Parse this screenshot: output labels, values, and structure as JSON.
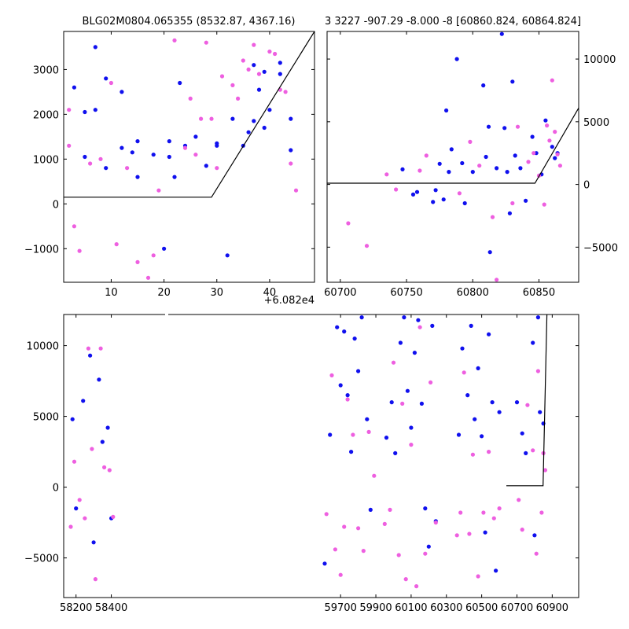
{
  "chart_data": [
    {
      "type": "scatter",
      "title": "BLG02M0804.065355 (8532.87, 4367.16)",
      "xlabel": "",
      "ylabel": "",
      "xlim": [
        1,
        48.5
      ],
      "ylim": [
        -1750,
        3850
      ],
      "x_offset_label": "+6.082e4",
      "xticks": [
        10,
        20,
        30,
        40
      ],
      "yticks": [
        -1000,
        0,
        1000,
        2000,
        3000
      ],
      "y_axis_side": "left",
      "series": [
        {
          "name": "blue",
          "color": "#1010ee",
          "points": [
            [
              3,
              2600
            ],
            [
              5,
              1050
            ],
            [
              5,
              2050
            ],
            [
              7,
              3500
            ],
            [
              7,
              2100
            ],
            [
              9,
              2800
            ],
            [
              9,
              800
            ],
            [
              12,
              1250
            ],
            [
              12,
              2500
            ],
            [
              14,
              1150
            ],
            [
              15,
              1400
            ],
            [
              15,
              600
            ],
            [
              18,
              1100
            ],
            [
              20,
              -1000
            ],
            [
              21,
              1050
            ],
            [
              21,
              1400
            ],
            [
              22,
              600
            ],
            [
              23,
              2700
            ],
            [
              24,
              1300
            ],
            [
              26,
              1500
            ],
            [
              28,
              850
            ],
            [
              30,
              1300
            ],
            [
              30,
              1350
            ],
            [
              32,
              -1150
            ],
            [
              33,
              1900
            ],
            [
              35,
              1300
            ],
            [
              36,
              1600
            ],
            [
              37,
              1850
            ],
            [
              37,
              3100
            ],
            [
              38,
              2550
            ],
            [
              39,
              2950
            ],
            [
              39,
              1700
            ],
            [
              40,
              2100
            ],
            [
              42,
              2900
            ],
            [
              42,
              3150
            ],
            [
              44,
              1900
            ],
            [
              44,
              1200
            ]
          ]
        },
        {
          "name": "magenta",
          "color": "#ee5fe0",
          "points": [
            [
              2,
              2100
            ],
            [
              2,
              1300
            ],
            [
              3,
              -500
            ],
            [
              4,
              -1050
            ],
            [
              6,
              900
            ],
            [
              8,
              1000
            ],
            [
              10,
              2700
            ],
            [
              11,
              -900
            ],
            [
              13,
              800
            ],
            [
              15,
              -1300
            ],
            [
              17,
              -1650
            ],
            [
              18,
              -1150
            ],
            [
              19,
              300
            ],
            [
              22,
              3650
            ],
            [
              24,
              1250
            ],
            [
              25,
              2350
            ],
            [
              26,
              1100
            ],
            [
              27,
              1900
            ],
            [
              28,
              3600
            ],
            [
              29,
              1900
            ],
            [
              30,
              800
            ],
            [
              31,
              2850
            ],
            [
              33,
              2650
            ],
            [
              34,
              2350
            ],
            [
              35,
              3200
            ],
            [
              36,
              3000
            ],
            [
              37,
              3550
            ],
            [
              38,
              2900
            ],
            [
              40,
              3400
            ],
            [
              41,
              3350
            ],
            [
              42,
              2550
            ],
            [
              43,
              2500
            ],
            [
              44,
              900
            ],
            [
              45,
              300
            ]
          ]
        }
      ],
      "model_line": [
        [
          1,
          150
        ],
        [
          29,
          150
        ],
        [
          48.5,
          3850
        ]
      ]
    },
    {
      "type": "scatter",
      "title": "3 3227 -907.29 -8.000 -8 [60860.824, 60864.824]",
      "xlabel": "",
      "ylabel": "",
      "xlim": [
        60690,
        60880
      ],
      "ylim": [
        -7800,
        12200
      ],
      "xticks": [
        60700,
        60750,
        60800,
        60850
      ],
      "yticks": [
        -5000,
        0,
        5000,
        10000
      ],
      "y_axis_side": "right",
      "series": [
        {
          "name": "blue",
          "color": "#1010ee",
          "points": [
            [
              60747,
              1200
            ],
            [
              60755,
              -800
            ],
            [
              60758,
              -600
            ],
            [
              60770,
              -1400
            ],
            [
              60772,
              -450
            ],
            [
              60775,
              1650
            ],
            [
              60778,
              -1200
            ],
            [
              60780,
              5900
            ],
            [
              60782,
              1000
            ],
            [
              60784,
              2800
            ],
            [
              60788,
              10000
            ],
            [
              60792,
              1700
            ],
            [
              60794,
              -1500
            ],
            [
              60800,
              1000
            ],
            [
              60808,
              7900
            ],
            [
              60810,
              2200
            ],
            [
              60812,
              4600
            ],
            [
              60813,
              -5400
            ],
            [
              60818,
              1300
            ],
            [
              60822,
              12000
            ],
            [
              60824,
              4500
            ],
            [
              60826,
              1000
            ],
            [
              60828,
              -2300
            ],
            [
              60830,
              8200
            ],
            [
              60832,
              2300
            ],
            [
              60836,
              1300
            ],
            [
              60840,
              -1300
            ],
            [
              60845,
              3800
            ],
            [
              60848,
              2500
            ],
            [
              60852,
              800
            ],
            [
              60855,
              5100
            ],
            [
              60860,
              3000
            ],
            [
              60862,
              2100
            ],
            [
              60864,
              2500
            ]
          ]
        },
        {
          "name": "magenta",
          "color": "#ee5fe0",
          "points": [
            [
              60706,
              -3100
            ],
            [
              60720,
              -4900
            ],
            [
              60735,
              800
            ],
            [
              60742,
              -400
            ],
            [
              60760,
              1100
            ],
            [
              60765,
              2300
            ],
            [
              60790,
              -700
            ],
            [
              60798,
              3400
            ],
            [
              60805,
              1500
            ],
            [
              60815,
              -2600
            ],
            [
              60818,
              -7600
            ],
            [
              60830,
              -1500
            ],
            [
              60834,
              4600
            ],
            [
              60842,
              1800
            ],
            [
              60846,
              2500
            ],
            [
              60850,
              700
            ],
            [
              60854,
              -1600
            ],
            [
              60856,
              4700
            ],
            [
              60858,
              3500
            ],
            [
              60860,
              8300
            ],
            [
              60862,
              4200
            ],
            [
              60864,
              2400
            ],
            [
              60866,
              1500
            ]
          ]
        }
      ],
      "model_line": [
        [
          60690,
          100
        ],
        [
          60847,
          100
        ],
        [
          60880,
          6100
        ]
      ]
    },
    {
      "type": "scatter",
      "title": "",
      "xlabel": "",
      "ylabel": "",
      "xlim": [
        58130,
        61050
      ],
      "ylim": [
        -7800,
        12200
      ],
      "xticks": [
        58200,
        58400,
        59700,
        59900,
        60100,
        60300,
        60500,
        60700,
        60900
      ],
      "yticks": [
        -5000,
        0,
        5000,
        10000
      ],
      "y_axis_side": "left",
      "note": "x axis broken between 58420 and 59600",
      "series": [
        {
          "name": "blue",
          "color": "#1010ee",
          "points": [
            [
              58180,
              4800
            ],
            [
              58200,
              -1500
            ],
            [
              58240,
              6100
            ],
            [
              58280,
              9300
            ],
            [
              58300,
              -3900
            ],
            [
              58330,
              7600
            ],
            [
              58350,
              3200
            ],
            [
              58380,
              4200
            ],
            [
              58400,
              -2200
            ],
            [
              59610,
              -5400
            ],
            [
              59640,
              3700
            ],
            [
              59680,
              11300
            ],
            [
              59700,
              7200
            ],
            [
              59720,
              11000
            ],
            [
              59740,
              6500
            ],
            [
              59760,
              2500
            ],
            [
              59780,
              10500
            ],
            [
              59800,
              8200
            ],
            [
              59820,
              12000
            ],
            [
              59850,
              4800
            ],
            [
              59870,
              -1600
            ],
            [
              59960,
              3500
            ],
            [
              59990,
              6000
            ],
            [
              60010,
              2400
            ],
            [
              60040,
              10200
            ],
            [
              60060,
              12000
            ],
            [
              60080,
              6800
            ],
            [
              60100,
              4200
            ],
            [
              60120,
              9500
            ],
            [
              60140,
              11800
            ],
            [
              60160,
              5900
            ],
            [
              60180,
              -1500
            ],
            [
              60200,
              -4200
            ],
            [
              60220,
              11400
            ],
            [
              60240,
              -2400
            ],
            [
              60370,
              3700
            ],
            [
              60390,
              9800
            ],
            [
              60420,
              6500
            ],
            [
              60440,
              11400
            ],
            [
              60460,
              4800
            ],
            [
              60480,
              8400
            ],
            [
              60500,
              3600
            ],
            [
              60520,
              -3200
            ],
            [
              60540,
              10800
            ],
            [
              60560,
              6000
            ],
            [
              60580,
              -5900
            ],
            [
              60600,
              5300
            ],
            [
              60700,
              6000
            ],
            [
              60730,
              3800
            ],
            [
              60750,
              2400
            ],
            [
              60790,
              10200
            ],
            [
              60800,
              -3400
            ],
            [
              60820,
              12000
            ],
            [
              60830,
              5300
            ],
            [
              60850,
              4500
            ]
          ]
        },
        {
          "name": "magenta",
          "color": "#ee5fe0",
          "points": [
            [
              58170,
              -2800
            ],
            [
              58190,
              1800
            ],
            [
              58220,
              -900
            ],
            [
              58250,
              -2200
            ],
            [
              58270,
              9800
            ],
            [
              58290,
              2700
            ],
            [
              58310,
              -6500
            ],
            [
              58340,
              9800
            ],
            [
              58360,
              1400
            ],
            [
              58390,
              1200
            ],
            [
              58410,
              -2100
            ],
            [
              59620,
              -1900
            ],
            [
              59650,
              7900
            ],
            [
              59670,
              -4400
            ],
            [
              59700,
              -6200
            ],
            [
              59720,
              -2800
            ],
            [
              59740,
              6200
            ],
            [
              59770,
              3700
            ],
            [
              59800,
              -2900
            ],
            [
              59830,
              -4500
            ],
            [
              59860,
              3900
            ],
            [
              59890,
              800
            ],
            [
              59950,
              -2600
            ],
            [
              59980,
              -1600
            ],
            [
              60000,
              8800
            ],
            [
              60030,
              -4800
            ],
            [
              60050,
              5900
            ],
            [
              60070,
              -6500
            ],
            [
              60100,
              3000
            ],
            [
              60130,
              -7000
            ],
            [
              60150,
              11300
            ],
            [
              60180,
              -4700
            ],
            [
              60210,
              7400
            ],
            [
              60240,
              -2500
            ],
            [
              60360,
              -3400
            ],
            [
              60380,
              -1800
            ],
            [
              60400,
              8100
            ],
            [
              60430,
              -3300
            ],
            [
              60450,
              2300
            ],
            [
              60480,
              -6300
            ],
            [
              60510,
              -1800
            ],
            [
              60540,
              2500
            ],
            [
              60570,
              -2200
            ],
            [
              60600,
              -1500
            ],
            [
              60710,
              -900
            ],
            [
              60730,
              -3000
            ],
            [
              60760,
              5800
            ],
            [
              60790,
              2600
            ],
            [
              60810,
              -4700
            ],
            [
              60820,
              8200
            ],
            [
              60840,
              -1800
            ],
            [
              60850,
              2400
            ],
            [
              60860,
              1200
            ]
          ]
        }
      ],
      "model_line": [
        [
          60640,
          100
        ],
        [
          60848,
          100
        ],
        [
          60870,
          12200
        ]
      ]
    }
  ]
}
